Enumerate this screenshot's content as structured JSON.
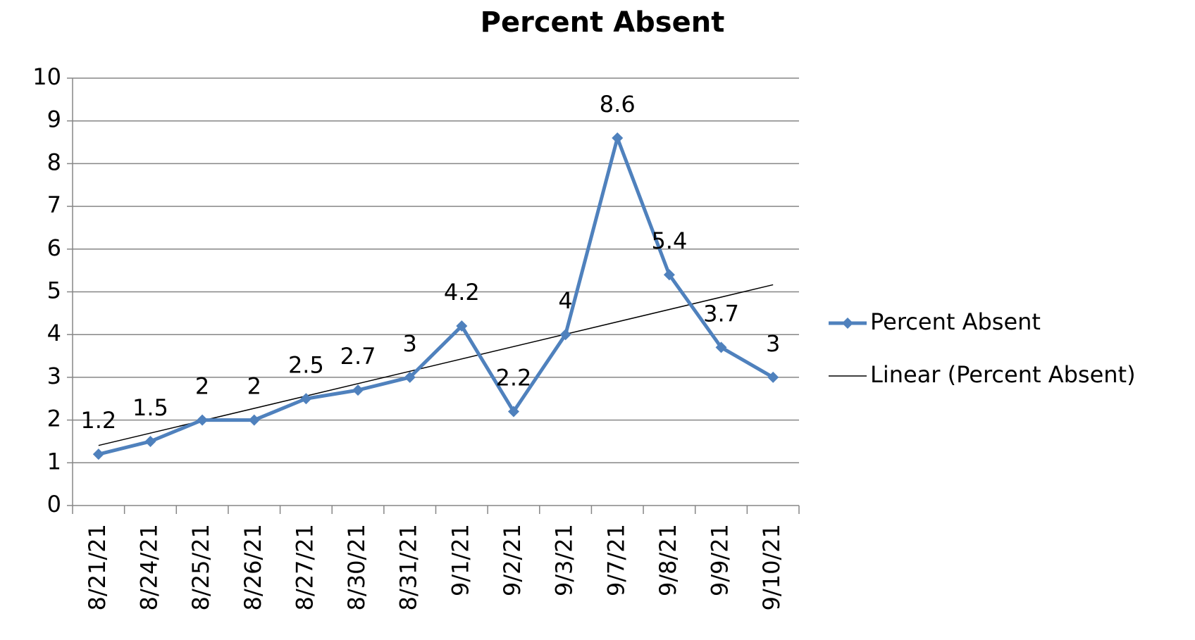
{
  "chart_data": {
    "type": "line",
    "title": "Percent Absent",
    "categories": [
      "8/21/21",
      "8/24/21",
      "8/25/21",
      "8/26/21",
      "8/27/21",
      "8/30/21",
      "8/31/21",
      "9/1/21",
      "9/2/21",
      "9/3/21",
      "9/7/21",
      "9/8/21",
      "9/9/21",
      "9/10/21"
    ],
    "series": [
      {
        "name": "Percent Absent",
        "color": "#4f81bd",
        "values": [
          1.2,
          1.5,
          2,
          2,
          2.5,
          2.7,
          3,
          4.2,
          2.2,
          4,
          8.6,
          5.4,
          3.7,
          3
        ]
      }
    ],
    "trendline": {
      "type": "linear",
      "name": "Linear (Percent Absent)",
      "color": "#000000"
    },
    "ylim": [
      0,
      10
    ],
    "yticks": [
      0,
      1,
      2,
      3,
      4,
      5,
      6,
      7,
      8,
      9,
      10
    ],
    "grid": true,
    "data_labels": true,
    "legend": "right"
  }
}
